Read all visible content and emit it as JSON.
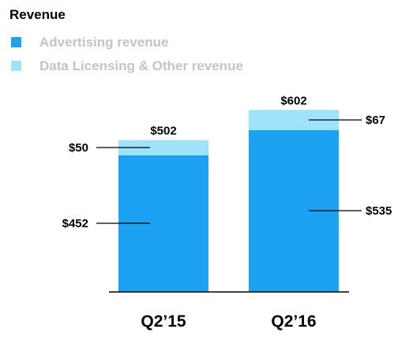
{
  "chart_data": {
    "type": "bar",
    "stacked": true,
    "title": "Revenue",
    "categories": [
      "Q2’15",
      "Q2’16"
    ],
    "series": [
      {
        "name": "Advertising revenue",
        "color": "#1da1f2",
        "values": [
          452,
          535
        ],
        "labels": [
          "$452",
          "$535"
        ]
      },
      {
        "name": "Data Licensing & Other revenue",
        "color": "#9ee3fa",
        "values": [
          50,
          67
        ],
        "labels": [
          "$50",
          "$67"
        ]
      }
    ],
    "totals": [
      502,
      602
    ],
    "total_labels": [
      "$502",
      "$602"
    ],
    "legend_position": "top-left",
    "grid": false,
    "ylim": [
      0,
      650
    ]
  }
}
